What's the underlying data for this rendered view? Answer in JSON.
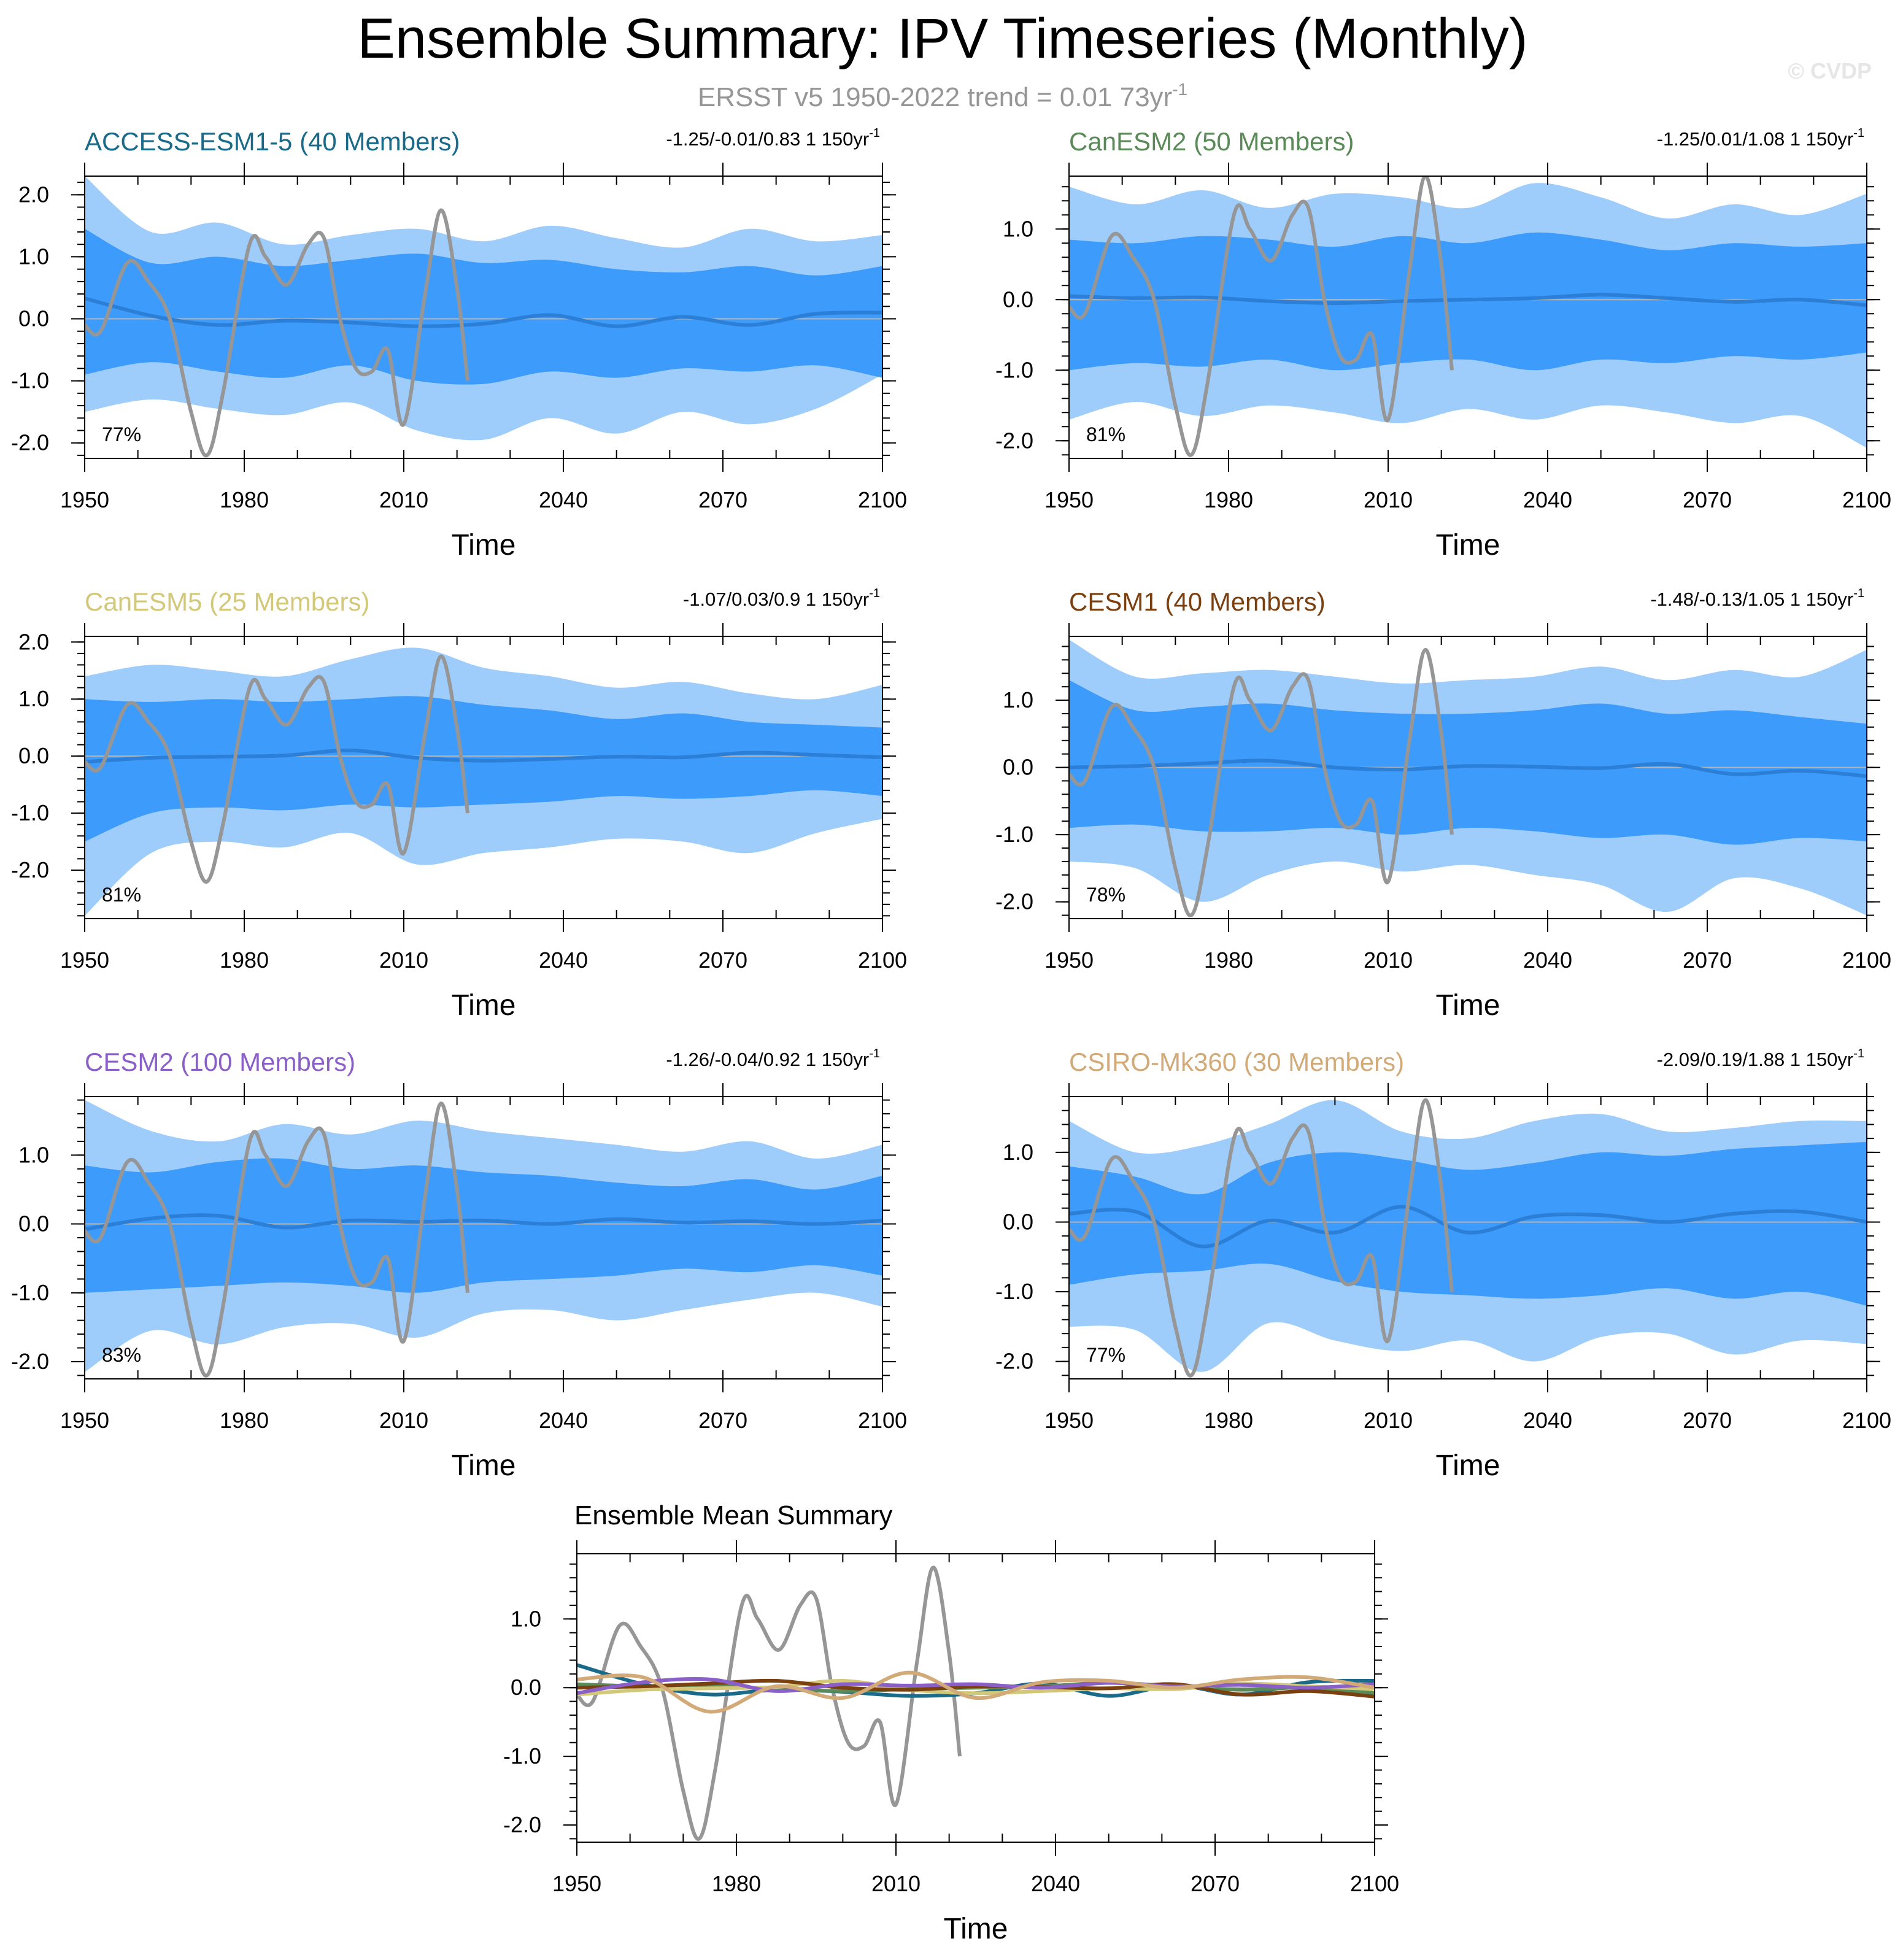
{
  "figure": {
    "title": "Ensemble Summary: IPV Timeseries (Monthly)",
    "subtitle_main": "ERSST v5 1950-2022 trend = 0.01 73yr",
    "subtitle_sup": "-1",
    "watermark": "© CVDP"
  },
  "colors": {
    "outer_band": "#9fcdfb",
    "inner_band": "#3d9bfb",
    "ensemble_mean": "#2c7fd6",
    "observed": "#969696",
    "axis": "#000000"
  },
  "chart_data": [
    {
      "type": "area",
      "title": "ACCESS-ESM1-5 (40 Members)",
      "title_color": "#1a6a8a",
      "stats": "-1.25/-0.01/0.83 1 150yr",
      "stats_sup": "-1",
      "percent": "77%",
      "xlabel": "Time",
      "xlim": [
        1950,
        2100
      ],
      "ylim": [
        -2.25,
        2.3
      ],
      "xticks": [
        1950,
        1980,
        2010,
        2040,
        2070,
        2100
      ],
      "yticks": [
        -2.0,
        -1.0,
        0.0,
        1.0,
        2.0
      ],
      "ytick_labels": [
        "-2.0",
        "-1.0",
        "0.0",
        "1.0",
        "2.0"
      ],
      "outer_band": {
        "upper": [
          2.3,
          1.4,
          1.55,
          1.2,
          1.35,
          1.45,
          1.25,
          1.5,
          1.3,
          1.15,
          1.45,
          1.25,
          1.35
        ],
        "lower": [
          -1.5,
          -1.3,
          -1.45,
          -1.55,
          -1.35,
          -1.8,
          -1.95,
          -1.6,
          -1.85,
          -1.5,
          -1.7,
          -1.45,
          -0.9
        ]
      },
      "inner_band": {
        "upper": [
          1.45,
          0.9,
          1.0,
          0.85,
          0.95,
          1.05,
          0.9,
          0.95,
          0.8,
          0.75,
          0.85,
          0.7,
          0.85
        ],
        "lower": [
          -0.9,
          -0.7,
          -0.85,
          -0.95,
          -0.75,
          -1.0,
          -1.05,
          -0.85,
          -0.95,
          -0.8,
          -0.85,
          -0.75,
          -0.95
        ]
      },
      "ensemble_mean": [
        0.33,
        0.05,
        -0.1,
        -0.03,
        -0.06,
        -0.12,
        -0.08,
        0.06,
        -0.12,
        0.03,
        -0.1,
        0.08,
        0.1
      ],
      "obs_x": [
        1950,
        1953,
        1958,
        1962,
        1966,
        1970,
        1973,
        1976,
        1981,
        1984,
        1988,
        1992,
        1995,
        1998,
        2001,
        2004,
        2007,
        2010,
        2014,
        2017,
        2020,
        2022
      ],
      "obs": [
        -0.1,
        -0.2,
        0.9,
        0.6,
        0.0,
        -1.5,
        -2.2,
        -1.2,
        1.2,
        1.0,
        0.55,
        1.2,
        1.3,
        0.0,
        -0.8,
        -0.85,
        -0.5,
        -1.7,
        0.4,
        1.75,
        0.5,
        -1.0
      ]
    },
    {
      "type": "area",
      "title": "CanESM2 (50 Members)",
      "title_color": "#5a8a58",
      "stats": "-1.25/0.01/1.08 1 150yr",
      "stats_sup": "-1",
      "percent": "81%",
      "xlabel": "Time",
      "xlim": [
        1950,
        2100
      ],
      "ylim": [
        -2.25,
        1.75
      ],
      "xticks": [
        1950,
        1980,
        2010,
        2040,
        2070,
        2100
      ],
      "yticks": [
        -2.0,
        -1.0,
        0.0,
        1.0
      ],
      "ytick_labels": [
        "-2.0",
        "-1.0",
        "0.0",
        "1.0"
      ],
      "outer_band": {
        "upper": [
          1.6,
          1.35,
          1.55,
          1.3,
          1.5,
          1.45,
          1.3,
          1.65,
          1.45,
          1.15,
          1.35,
          1.2,
          1.5
        ],
        "lower": [
          -1.7,
          -1.45,
          -1.65,
          -1.5,
          -1.6,
          -1.75,
          -1.55,
          -1.7,
          -1.5,
          -1.6,
          -1.75,
          -1.65,
          -2.1
        ]
      },
      "inner_band": {
        "upper": [
          0.85,
          0.8,
          0.9,
          0.85,
          0.75,
          0.9,
          0.8,
          0.95,
          0.85,
          0.7,
          0.8,
          0.75,
          0.8
        ],
        "lower": [
          -1.0,
          -0.9,
          -0.95,
          -0.85,
          -1.0,
          -0.9,
          -0.85,
          -1.0,
          -0.85,
          -0.9,
          -0.8,
          -0.85,
          -0.75
        ]
      },
      "ensemble_mean": [
        0.05,
        0.02,
        0.03,
        -0.02,
        -0.05,
        -0.02,
        0.0,
        0.02,
        0.07,
        0.02,
        -0.03,
        0.0,
        -0.08
      ],
      "obs_x": [
        1950,
        1953,
        1958,
        1962,
        1966,
        1970,
        1973,
        1976,
        1981,
        1984,
        1988,
        1992,
        1995,
        1998,
        2001,
        2004,
        2007,
        2010,
        2014,
        2017,
        2020,
        2022
      ],
      "obs": [
        -0.1,
        -0.2,
        0.9,
        0.6,
        0.0,
        -1.5,
        -2.2,
        -1.2,
        1.2,
        1.0,
        0.55,
        1.2,
        1.3,
        0.0,
        -0.8,
        -0.85,
        -0.5,
        -1.7,
        0.4,
        1.75,
        0.5,
        -1.0
      ]
    },
    {
      "type": "area",
      "title": "CanESM5 (25 Members)",
      "title_color": "#d2c878",
      "stats": "-1.07/0.03/0.9 1 150yr",
      "stats_sup": "-1",
      "percent": "81%",
      "xlabel": "Time",
      "xlim": [
        1950,
        2100
      ],
      "ylim": [
        -2.85,
        2.1
      ],
      "xticks": [
        1950,
        1980,
        2010,
        2040,
        2070,
        2100
      ],
      "yticks": [
        -2.0,
        -1.0,
        0.0,
        1.0,
        2.0
      ],
      "ytick_labels": [
        "-2.0",
        "-1.0",
        "0.0",
        "1.0",
        "2.0"
      ],
      "outer_band": {
        "upper": [
          1.4,
          1.6,
          1.5,
          1.4,
          1.7,
          1.9,
          1.55,
          1.4,
          1.2,
          1.3,
          1.1,
          1.0,
          1.25
        ],
        "lower": [
          -2.8,
          -1.7,
          -1.5,
          -1.6,
          -1.35,
          -1.9,
          -1.7,
          -1.6,
          -1.45,
          -1.5,
          -1.7,
          -1.35,
          -1.1
        ]
      },
      "inner_band": {
        "upper": [
          1.0,
          0.95,
          1.0,
          0.95,
          1.0,
          1.05,
          0.9,
          0.8,
          0.65,
          0.75,
          0.6,
          0.55,
          0.5
        ],
        "lower": [
          -1.5,
          -1.0,
          -0.9,
          -0.95,
          -0.85,
          -0.9,
          -0.85,
          -0.8,
          -0.7,
          -0.75,
          -0.7,
          -0.6,
          -0.7
        ]
      },
      "ensemble_mean": [
        -0.1,
        -0.03,
        -0.01,
        0.01,
        0.1,
        -0.03,
        -0.08,
        -0.05,
        -0.01,
        -0.02,
        0.06,
        0.02,
        -0.02
      ],
      "obs_x": [
        1950,
        1953,
        1958,
        1962,
        1966,
        1970,
        1973,
        1976,
        1981,
        1984,
        1988,
        1992,
        1995,
        1998,
        2001,
        2004,
        2007,
        2010,
        2014,
        2017,
        2020,
        2022
      ],
      "obs": [
        -0.1,
        -0.2,
        0.9,
        0.6,
        0.0,
        -1.5,
        -2.2,
        -1.2,
        1.2,
        1.0,
        0.55,
        1.2,
        1.3,
        0.0,
        -0.8,
        -0.85,
        -0.5,
        -1.7,
        0.4,
        1.75,
        0.5,
        -1.0
      ]
    },
    {
      "type": "area",
      "title": "CESM1 (40 Members)",
      "title_color": "#7a4010",
      "stats": "-1.48/-0.13/1.05 1 150yr",
      "stats_sup": "-1",
      "percent": "78%",
      "xlabel": "Time",
      "xlim": [
        1950,
        2100
      ],
      "ylim": [
        -2.25,
        1.95
      ],
      "xticks": [
        1950,
        1980,
        2010,
        2040,
        2070,
        2100
      ],
      "yticks": [
        -2.0,
        -1.0,
        0.0,
        1.0
      ],
      "ytick_labels": [
        "-2.0",
        "-1.0",
        "0.0",
        "1.0"
      ],
      "outer_band": {
        "upper": [
          1.9,
          1.35,
          1.4,
          1.45,
          1.35,
          1.25,
          1.3,
          1.35,
          1.5,
          1.3,
          1.45,
          1.35,
          1.75
        ],
        "lower": [
          -1.4,
          -1.5,
          -2.0,
          -1.6,
          -1.4,
          -1.55,
          -1.45,
          -1.6,
          -1.75,
          -2.15,
          -1.65,
          -1.8,
          -2.2
        ]
      },
      "inner_band": {
        "upper": [
          1.3,
          0.85,
          0.9,
          0.95,
          0.85,
          0.8,
          0.8,
          0.85,
          0.95,
          0.8,
          0.85,
          0.75,
          0.65
        ],
        "lower": [
          -0.9,
          -0.85,
          -0.95,
          -0.95,
          -0.9,
          -1.0,
          -0.9,
          -0.95,
          -1.05,
          -1.0,
          -1.15,
          -1.05,
          -1.1
        ]
      },
      "ensemble_mean": [
        0.0,
        0.02,
        0.06,
        0.1,
        0.0,
        -0.03,
        0.02,
        0.01,
        -0.01,
        0.05,
        -0.1,
        -0.05,
        -0.13
      ],
      "obs_x": [
        1950,
        1953,
        1958,
        1962,
        1966,
        1970,
        1973,
        1976,
        1981,
        1984,
        1988,
        1992,
        1995,
        1998,
        2001,
        2004,
        2007,
        2010,
        2014,
        2017,
        2020,
        2022
      ],
      "obs": [
        -0.1,
        -0.2,
        0.9,
        0.6,
        0.0,
        -1.5,
        -2.2,
        -1.2,
        1.2,
        1.0,
        0.55,
        1.2,
        1.3,
        0.0,
        -0.8,
        -0.85,
        -0.5,
        -1.7,
        0.4,
        1.75,
        0.5,
        -1.0
      ]
    },
    {
      "type": "area",
      "title": "CESM2 (100 Members)",
      "title_color": "#8a60c8",
      "stats": "-1.26/-0.04/0.92 1 150yr",
      "stats_sup": "-1",
      "percent": "83%",
      "xlabel": "Time",
      "xlim": [
        1950,
        2100
      ],
      "ylim": [
        -2.25,
        1.85
      ],
      "xticks": [
        1950,
        1980,
        2010,
        2040,
        2070,
        2100
      ],
      "yticks": [
        -2.0,
        -1.0,
        0.0,
        1.0
      ],
      "ytick_labels": [
        "-2.0",
        "-1.0",
        "0.0",
        "1.0"
      ],
      "outer_band": {
        "upper": [
          1.8,
          1.35,
          1.2,
          1.45,
          1.3,
          1.5,
          1.35,
          1.25,
          1.15,
          1.05,
          1.2,
          0.95,
          1.15
        ],
        "lower": [
          -2.15,
          -1.55,
          -1.75,
          -1.5,
          -1.45,
          -1.65,
          -1.3,
          -1.25,
          -1.4,
          -1.25,
          -1.1,
          -1.0,
          -1.2
        ]
      },
      "inner_band": {
        "upper": [
          0.85,
          0.75,
          0.9,
          0.95,
          0.8,
          0.85,
          0.75,
          0.7,
          0.6,
          0.55,
          0.65,
          0.5,
          0.7
        ],
        "lower": [
          -1.0,
          -0.95,
          -0.9,
          -0.85,
          -0.9,
          -1.0,
          -0.85,
          -0.8,
          -0.75,
          -0.65,
          -0.7,
          -0.6,
          -0.75
        ]
      },
      "ensemble_mean": [
        -0.08,
        0.08,
        0.12,
        -0.05,
        0.05,
        0.03,
        0.05,
        0.0,
        0.07,
        0.02,
        0.04,
        0.0,
        0.05
      ],
      "obs_x": [
        1950,
        1953,
        1958,
        1962,
        1966,
        1970,
        1973,
        1976,
        1981,
        1984,
        1988,
        1992,
        1995,
        1998,
        2001,
        2004,
        2007,
        2010,
        2014,
        2017,
        2020,
        2022
      ],
      "obs": [
        -0.1,
        -0.2,
        0.9,
        0.6,
        0.0,
        -1.5,
        -2.2,
        -1.2,
        1.2,
        1.0,
        0.55,
        1.2,
        1.3,
        0.0,
        -0.8,
        -0.85,
        -0.5,
        -1.7,
        0.4,
        1.75,
        0.5,
        -1.0
      ]
    },
    {
      "type": "area",
      "title": "CSIRO-Mk360 (30 Members)",
      "title_color": "#d2aa78",
      "stats": "-2.09/0.19/1.88 1 150yr",
      "stats_sup": "-1",
      "percent": "77%",
      "xlabel": "Time",
      "xlim": [
        1950,
        2100
      ],
      "ylim": [
        -2.25,
        1.8
      ],
      "xticks": [
        1950,
        1980,
        2010,
        2040,
        2070,
        2100
      ],
      "yticks": [
        -2.0,
        -1.0,
        0.0,
        1.0
      ],
      "ytick_labels": [
        "-2.0",
        "-1.0",
        "0.0",
        "1.0"
      ],
      "outer_band": {
        "upper": [
          1.45,
          1.0,
          1.1,
          1.4,
          1.75,
          1.3,
          1.2,
          1.45,
          1.55,
          1.3,
          1.35,
          1.45,
          1.45
        ],
        "lower": [
          -1.5,
          -1.55,
          -2.15,
          -1.45,
          -1.7,
          -1.85,
          -1.7,
          -2.0,
          -1.65,
          -1.6,
          -1.9,
          -1.7,
          -1.75
        ]
      },
      "inner_band": {
        "upper": [
          0.8,
          0.65,
          0.4,
          0.85,
          1.0,
          0.9,
          0.75,
          0.85,
          1.0,
          0.95,
          1.05,
          1.1,
          1.15
        ],
        "lower": [
          -0.9,
          -0.75,
          -0.7,
          -0.6,
          -0.85,
          -1.0,
          -1.05,
          -1.1,
          -1.05,
          -0.95,
          -1.1,
          -1.0,
          -1.2
        ]
      },
      "ensemble_mean": [
        0.12,
        0.15,
        -0.35,
        0.02,
        -0.15,
        0.22,
        -0.15,
        0.08,
        0.1,
        0.0,
        0.12,
        0.15,
        0.0
      ],
      "obs_x": [
        1950,
        1953,
        1958,
        1962,
        1966,
        1970,
        1973,
        1976,
        1981,
        1984,
        1988,
        1992,
        1995,
        1998,
        2001,
        2004,
        2007,
        2010,
        2014,
        2017,
        2020,
        2022
      ],
      "obs": [
        -0.1,
        -0.2,
        0.9,
        0.6,
        0.0,
        -1.5,
        -2.2,
        -1.2,
        1.2,
        1.0,
        0.55,
        1.2,
        1.3,
        0.0,
        -0.8,
        -0.85,
        -0.5,
        -1.7,
        0.4,
        1.75,
        0.5,
        -1.0
      ]
    },
    {
      "type": "line",
      "title": "Ensemble Mean Summary",
      "title_color": "#000000",
      "xlabel": "Time",
      "xlim": [
        1950,
        2100
      ],
      "ylim": [
        -2.25,
        1.95
      ],
      "xticks": [
        1950,
        1980,
        2010,
        2040,
        2070,
        2100
      ],
      "yticks": [
        -2.0,
        -1.0,
        0.0,
        1.0
      ],
      "ytick_labels": [
        "-2.0",
        "-1.0",
        "0.0",
        "1.0"
      ],
      "series": [
        {
          "color": "#1a6a8a",
          "values": [
            0.33,
            0.05,
            -0.1,
            -0.03,
            -0.06,
            -0.12,
            -0.08,
            0.06,
            -0.12,
            0.03,
            -0.1,
            0.08,
            0.1
          ]
        },
        {
          "color": "#5a8a58",
          "values": [
            0.05,
            0.02,
            0.03,
            -0.02,
            -0.05,
            -0.02,
            0.0,
            0.02,
            0.07,
            0.02,
            -0.03,
            0.0,
            -0.08
          ]
        },
        {
          "color": "#d2c878",
          "values": [
            -0.1,
            -0.03,
            -0.01,
            0.01,
            0.1,
            -0.03,
            -0.08,
            -0.05,
            -0.01,
            -0.02,
            0.06,
            0.02,
            -0.02
          ]
        },
        {
          "color": "#7a4010",
          "values": [
            0.0,
            0.02,
            0.06,
            0.1,
            0.0,
            -0.03,
            0.02,
            0.01,
            -0.01,
            0.05,
            -0.1,
            -0.05,
            -0.13
          ]
        },
        {
          "color": "#8a60c8",
          "values": [
            -0.08,
            0.08,
            0.12,
            -0.05,
            0.05,
            0.03,
            0.05,
            0.0,
            0.07,
            0.02,
            0.04,
            0.0,
            0.05
          ]
        },
        {
          "color": "#d2aa78",
          "values": [
            0.12,
            0.15,
            -0.35,
            0.02,
            -0.15,
            0.22,
            -0.15,
            0.08,
            0.1,
            0.0,
            0.12,
            0.15,
            0.0
          ]
        }
      ],
      "obs_x": [
        1950,
        1953,
        1958,
        1962,
        1966,
        1970,
        1973,
        1976,
        1981,
        1984,
        1988,
        1992,
        1995,
        1998,
        2001,
        2004,
        2007,
        2010,
        2014,
        2017,
        2020,
        2022
      ],
      "obs": [
        -0.1,
        -0.2,
        0.9,
        0.6,
        0.0,
        -1.5,
        -2.2,
        -1.2,
        1.2,
        1.0,
        0.55,
        1.2,
        1.3,
        0.0,
        -0.8,
        -0.85,
        -0.5,
        -1.7,
        0.4,
        1.75,
        0.5,
        -1.0
      ]
    }
  ]
}
